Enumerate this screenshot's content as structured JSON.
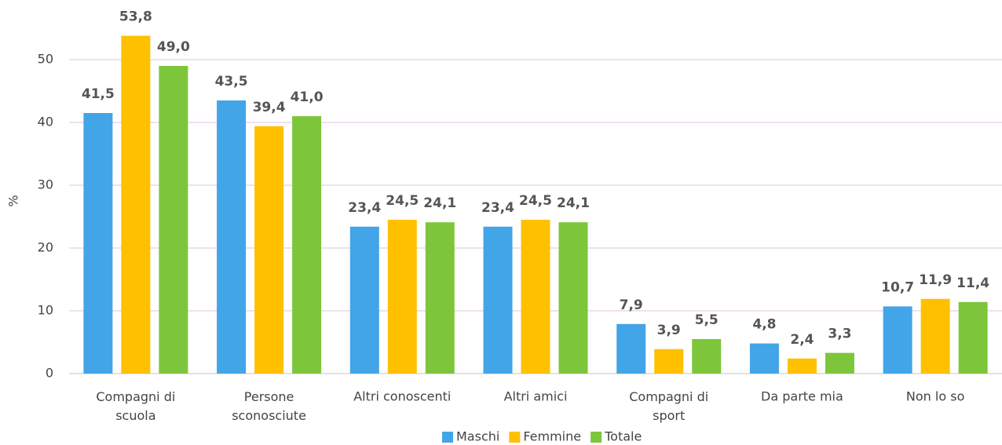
{
  "chart_data": {
    "type": "bar",
    "y_label": "%",
    "categories": [
      "Compagni di\nscuola",
      "Persone\nsconosciute",
      "Altri conoscenti",
      "Altri amici",
      "Compagni di\nsport",
      "Da parte mia",
      "Non lo so"
    ],
    "series": [
      {
        "name": "Maschi",
        "color": "#42a5e8",
        "values": [
          41.5,
          43.5,
          23.4,
          23.4,
          7.9,
          4.8,
          10.7
        ],
        "value_labels": [
          "41,5",
          "43,5",
          "23,4",
          "23,4",
          "7,9",
          "4,8",
          "10,7"
        ]
      },
      {
        "name": "Femmine",
        "color": "#ffc000",
        "values": [
          53.8,
          39.4,
          24.5,
          24.5,
          3.9,
          2.4,
          11.9
        ],
        "value_labels": [
          "53,8",
          "39,4",
          "24,5",
          "24,5",
          "3,9",
          "2,4",
          "11,9"
        ]
      },
      {
        "name": "Totale",
        "color": "#7dc63b",
        "values": [
          49.0,
          41.0,
          24.1,
          24.1,
          5.5,
          3.3,
          11.4
        ],
        "value_labels": [
          "49,0",
          "41,0",
          "24,1",
          "24,1",
          "5,5",
          "3,3",
          "11,4"
        ]
      }
    ],
    "ylim": [
      0,
      55
    ],
    "yticks": [
      0,
      10,
      20,
      30,
      40,
      50
    ],
    "grid": true,
    "legend": "bottom"
  }
}
